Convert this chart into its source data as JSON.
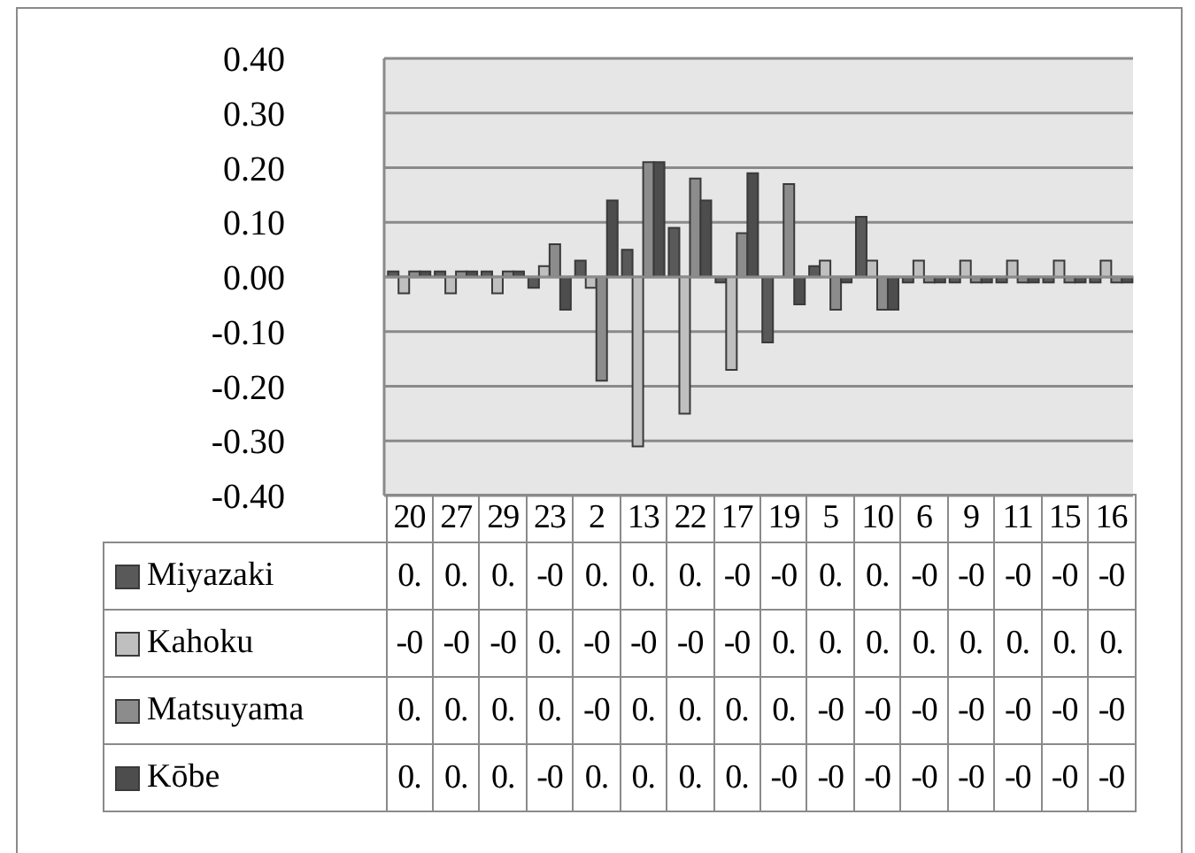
{
  "chart_data": {
    "type": "bar",
    "categories": [
      "20",
      "27",
      "29",
      "23",
      "2",
      "13",
      "22",
      "17",
      "19",
      "5",
      "10",
      "6",
      "9",
      "11",
      "15",
      "16"
    ],
    "series": [
      {
        "name": "Miyazaki",
        "color": "#595959",
        "values": [
          0.01,
          0.01,
          0.01,
          -0.02,
          0.03,
          0.05,
          0.09,
          -0.01,
          -0.12,
          0.02,
          0.11,
          -0.01,
          -0.01,
          -0.01,
          -0.01,
          -0.01
        ],
        "value_labels": [
          "0.",
          "0.",
          "0.",
          "-0",
          "0.",
          "0.",
          "0.",
          "-0",
          "-0",
          "0.",
          "0.",
          "-0",
          "-0",
          "-0",
          "-0",
          "-0"
        ]
      },
      {
        "name": "Kahoku",
        "color": "#bfbfbf",
        "values": [
          -0.03,
          -0.03,
          -0.03,
          0.02,
          -0.02,
          -0.31,
          -0.25,
          -0.17,
          0,
          0.03,
          0.03,
          0.03,
          0.03,
          0.03,
          0.03,
          0.03
        ],
        "value_labels": [
          "-0",
          "-0",
          "-0",
          "0.",
          "-0",
          "-0",
          "-0",
          "-0",
          "0.",
          "0.",
          "0.",
          "0.",
          "0.",
          "0.",
          "0.",
          "0."
        ]
      },
      {
        "name": "Matsuyama",
        "color": "#8c8c8c",
        "values": [
          0.01,
          0.01,
          0.01,
          0.06,
          -0.19,
          0.21,
          0.18,
          0.08,
          0.17,
          -0.06,
          -0.06,
          -0.01,
          -0.01,
          -0.01,
          -0.01,
          -0.01
        ],
        "value_labels": [
          "0.",
          "0.",
          "0.",
          "0.",
          "-0",
          "0.",
          "0.",
          "0.",
          "0.",
          "-0",
          "-0",
          "-0",
          "-0",
          "-0",
          "-0",
          "-0"
        ]
      },
      {
        "name": "Kōbe",
        "color": "#4d4d4d",
        "values": [
          0.01,
          0.01,
          0.01,
          -0.06,
          0.14,
          0.21,
          0.14,
          0.19,
          -0.05,
          -0.01,
          -0.06,
          -0.01,
          -0.01,
          -0.01,
          -0.01,
          -0.01
        ],
        "value_labels": [
          "0.",
          "0.",
          "0.",
          "-0",
          "0.",
          "0.",
          "0.",
          "0.",
          "-0",
          "-0",
          "-0",
          "-0",
          "-0",
          "-0",
          "-0",
          "-0"
        ]
      }
    ],
    "ylim": [
      -0.4,
      0.4
    ],
    "yticks": [
      {
        "value": -0.4,
        "label": "-0.40"
      },
      {
        "value": -0.3,
        "label": "-0.30"
      },
      {
        "value": -0.2,
        "label": "-0.20"
      },
      {
        "value": -0.1,
        "label": "-0.10"
      },
      {
        "value": 0,
        "label": "0.00"
      },
      {
        "value": 0.1,
        "label": "0.10"
      },
      {
        "value": 0.2,
        "label": "0.20"
      },
      {
        "value": 0.3,
        "label": "0.30"
      },
      {
        "value": 0.4,
        "label": "0.40"
      }
    ],
    "grid": "y",
    "legend": "bottom"
  }
}
